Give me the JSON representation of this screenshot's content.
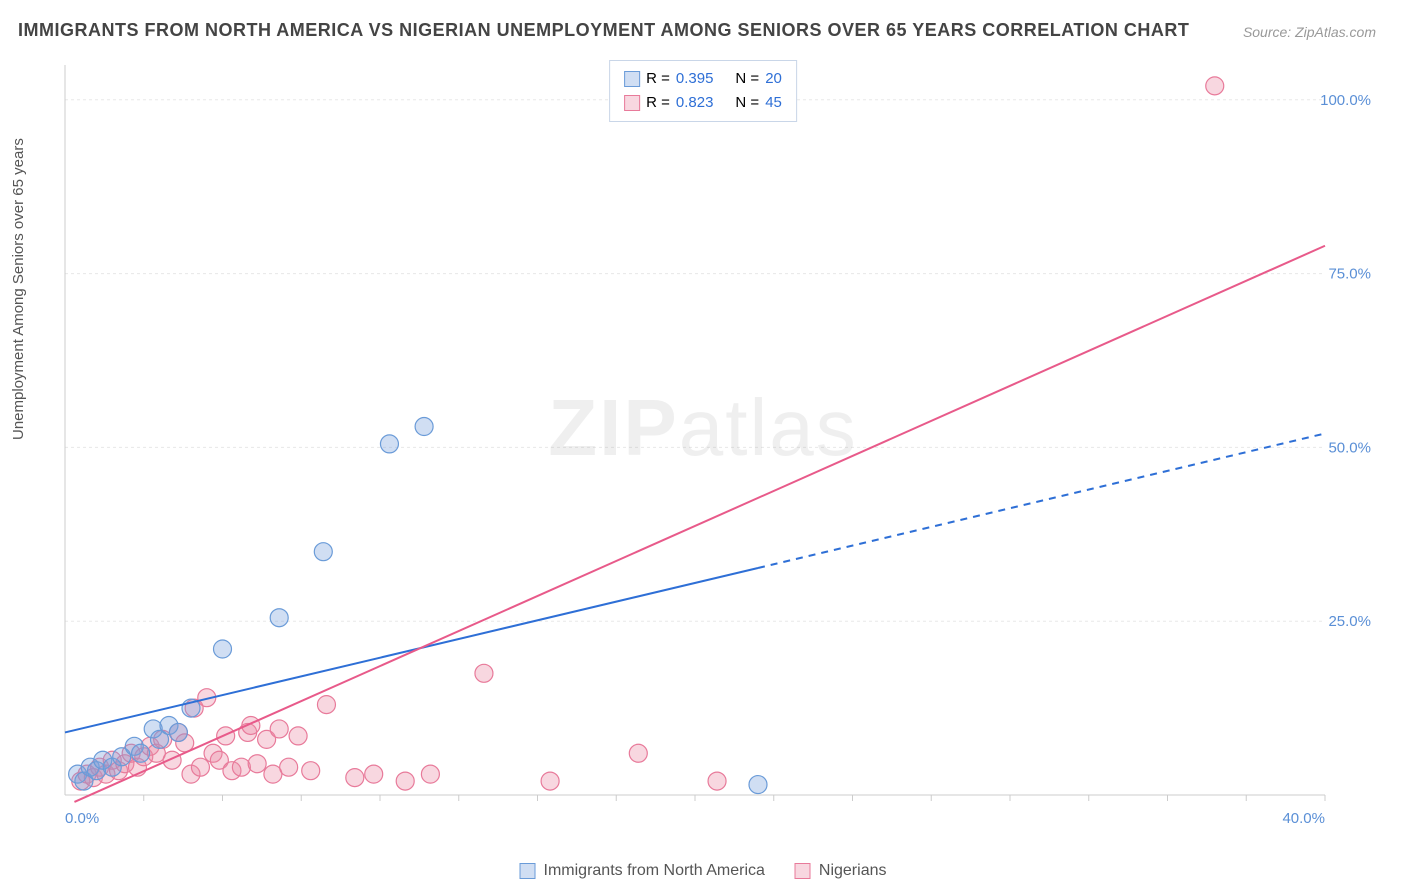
{
  "title": "IMMIGRANTS FROM NORTH AMERICA VS NIGERIAN UNEMPLOYMENT AMONG SENIORS OVER 65 YEARS CORRELATION CHART",
  "source_label": "Source: ZipAtlas.com",
  "y_axis_label": "Unemployment Among Seniors over 65 years",
  "watermark": "ZIPatlas",
  "chart": {
    "type": "scatter",
    "background_color": "#ffffff",
    "grid_color": "#e8e8e8",
    "plot_border_color": "#cccccc",
    "xlim": [
      0,
      40
    ],
    "ylim": [
      0,
      105
    ],
    "xtick_step": 10,
    "ytick_step": 25,
    "x_tick_labels": [
      "0.0%",
      "",
      "",
      "",
      "40.0%"
    ],
    "y_tick_labels": [
      "",
      "25.0%",
      "50.0%",
      "75.0%",
      "100.0%"
    ],
    "x_tick_positions": [
      0,
      10,
      20,
      30,
      40
    ],
    "y_tick_positions": [
      0,
      25,
      50,
      75,
      100
    ],
    "axis_label_color": "#5a8fd6",
    "axis_label_fontsize": 15,
    "series": [
      {
        "name": "Immigrants from North America",
        "marker_fill": "rgba(120,160,220,0.35)",
        "marker_stroke": "#6a9bd8",
        "marker_radius": 9,
        "line_color": "#2e6fd6",
        "line_width": 2,
        "line_dash_after_x": 22,
        "R": "0.395",
        "N": "20",
        "regression": {
          "x1": 0,
          "y1": 9,
          "x2": 40,
          "y2": 52
        },
        "points": [
          [
            0.4,
            3.0
          ],
          [
            0.6,
            2.0
          ],
          [
            0.8,
            4.0
          ],
          [
            1.0,
            3.5
          ],
          [
            1.2,
            5.0
          ],
          [
            1.5,
            4.0
          ],
          [
            1.8,
            5.5
          ],
          [
            2.2,
            7.0
          ],
          [
            2.4,
            6.0
          ],
          [
            2.8,
            9.5
          ],
          [
            3.0,
            8.0
          ],
          [
            3.3,
            10.0
          ],
          [
            3.6,
            9.0
          ],
          [
            4.0,
            12.5
          ],
          [
            5.0,
            21.0
          ],
          [
            6.8,
            25.5
          ],
          [
            8.2,
            35.0
          ],
          [
            10.3,
            50.5
          ],
          [
            11.4,
            53.0
          ],
          [
            22.0,
            1.5
          ]
        ]
      },
      {
        "name": "Nigerians",
        "marker_fill": "rgba(235,140,165,0.35)",
        "marker_stroke": "#e87a9a",
        "marker_radius": 9,
        "line_color": "#e85a8a",
        "line_width": 2,
        "R": "0.823",
        "N": "45",
        "regression": {
          "x1": 0.3,
          "y1": -1,
          "x2": 40,
          "y2": 79
        },
        "points": [
          [
            0.5,
            2.0
          ],
          [
            0.7,
            3.0
          ],
          [
            0.9,
            2.5
          ],
          [
            1.1,
            4.0
          ],
          [
            1.3,
            3.0
          ],
          [
            1.5,
            5.0
          ],
          [
            1.7,
            3.5
          ],
          [
            1.9,
            4.5
          ],
          [
            2.1,
            6.0
          ],
          [
            2.3,
            4.0
          ],
          [
            2.5,
            5.5
          ],
          [
            2.7,
            7.0
          ],
          [
            2.9,
            6.0
          ],
          [
            3.1,
            8.0
          ],
          [
            3.4,
            5.0
          ],
          [
            3.6,
            9.0
          ],
          [
            3.8,
            7.5
          ],
          [
            4.0,
            3.0
          ],
          [
            4.1,
            12.5
          ],
          [
            4.3,
            4.0
          ],
          [
            4.5,
            14.0
          ],
          [
            4.7,
            6.0
          ],
          [
            4.9,
            5.0
          ],
          [
            5.1,
            8.5
          ],
          [
            5.3,
            3.5
          ],
          [
            5.6,
            4.0
          ],
          [
            5.8,
            9.0
          ],
          [
            5.9,
            10.0
          ],
          [
            6.1,
            4.5
          ],
          [
            6.4,
            8.0
          ],
          [
            6.6,
            3.0
          ],
          [
            6.8,
            9.5
          ],
          [
            7.1,
            4.0
          ],
          [
            7.4,
            8.5
          ],
          [
            7.8,
            3.5
          ],
          [
            8.3,
            13.0
          ],
          [
            9.2,
            2.5
          ],
          [
            9.8,
            3.0
          ],
          [
            10.8,
            2.0
          ],
          [
            11.6,
            3.0
          ],
          [
            13.3,
            17.5
          ],
          [
            15.4,
            2.0
          ],
          [
            18.2,
            6.0
          ],
          [
            20.7,
            2.0
          ],
          [
            36.5,
            102.0
          ]
        ]
      }
    ]
  },
  "legend_top": {
    "r_label": "R =",
    "n_label": "N =",
    "text_color": "#555555",
    "value_color": "#2e6fd6",
    "border_color": "#c9d6e8"
  },
  "legend_bottom_label_color": "#555555"
}
